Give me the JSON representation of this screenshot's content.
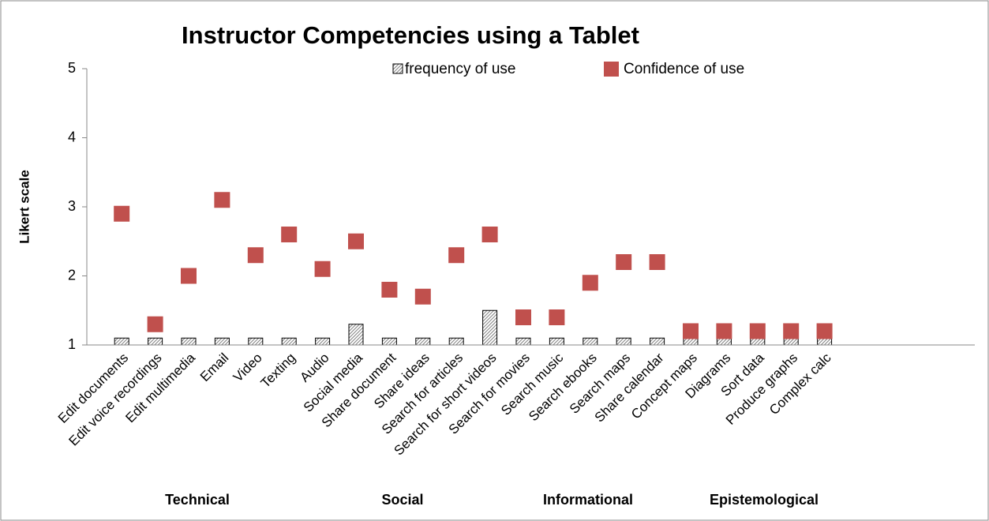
{
  "chart_data": {
    "type": "scatter-bar",
    "title": "Instructor Competencies using a Tablet",
    "y_label": "Likert scale",
    "categories": [
      "Edit  documents",
      "Edit voice recordings",
      "Edit multimedia",
      "Email",
      "Video",
      "Texting",
      "Audio",
      "Social media",
      "Share document",
      "Share ideas",
      "Search for articles",
      "Search for short videos",
      "Search for movies",
      "Search music",
      "Search ebooks",
      "Search maps",
      "Share calendar",
      "Concept maps",
      "Diagrams",
      "Sort data",
      "Produce graphs",
      "Complex calc"
    ],
    "groups": [
      "Technical",
      "Social",
      "Informational",
      "Epistemological"
    ],
    "series": [
      {
        "name": "frequency of use",
        "color": "#7f7f7f",
        "mark": "bar",
        "values": [
          1.1,
          1.1,
          1.1,
          1.1,
          1.1,
          1.1,
          1.1,
          1.3,
          1.1,
          1.1,
          1.1,
          1.5,
          1.1,
          1.1,
          1.1,
          1.1,
          1.1,
          1.1,
          1.1,
          1.1,
          1.1,
          1.1
        ]
      },
      {
        "name": "Confidence of use",
        "color": "#c0504d",
        "mark": "square",
        "values": [
          2.9,
          1.3,
          2.0,
          3.1,
          2.3,
          2.6,
          2.1,
          2.5,
          1.8,
          1.7,
          2.3,
          2.6,
          1.4,
          1.4,
          1.9,
          2.2,
          2.2,
          1.2,
          1.2,
          1.2,
          1.2,
          1.2
        ]
      }
    ],
    "ylim": [
      1,
      5
    ],
    "yticks": [
      1,
      2,
      3,
      4,
      5
    ],
    "legend": "top-right"
  }
}
